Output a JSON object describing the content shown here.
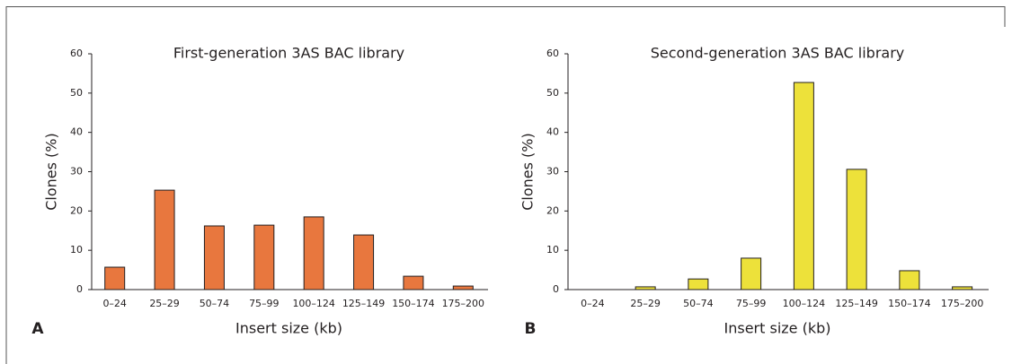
{
  "chart_data": [
    {
      "type": "bar",
      "panel_label": "A",
      "title": "First-generation 3AS BAC library",
      "x_label": "Insert size (kb)",
      "y_label": "Clones (%)",
      "categories": [
        "0–24",
        "25–29",
        "50–74",
        "75–99",
        "100–124",
        "125–149",
        "150–174",
        "175–200"
      ],
      "values": [
        5.7,
        25.3,
        16.2,
        16.4,
        18.5,
        13.9,
        3.4,
        0.9
      ],
      "color": "#e8773e",
      "ylim": [
        0,
        60
      ],
      "yticks": [
        0,
        10,
        20,
        30,
        40,
        50,
        60
      ]
    },
    {
      "type": "bar",
      "panel_label": "B",
      "title": "Second-generation 3AS BAC library",
      "x_label": "Insert size (kb)",
      "y_label": "Clones (%)",
      "categories": [
        "0–24",
        "25–29",
        "50–74",
        "75–99",
        "100–124",
        "125–149",
        "150–174",
        "175–200"
      ],
      "values": [
        0,
        0.7,
        2.7,
        8,
        52.7,
        30.6,
        4.8,
        0.7
      ],
      "color": "#ede13a",
      "ylim": [
        0,
        60
      ],
      "yticks": [
        0,
        10,
        20,
        30,
        40,
        50,
        60
      ]
    }
  ]
}
